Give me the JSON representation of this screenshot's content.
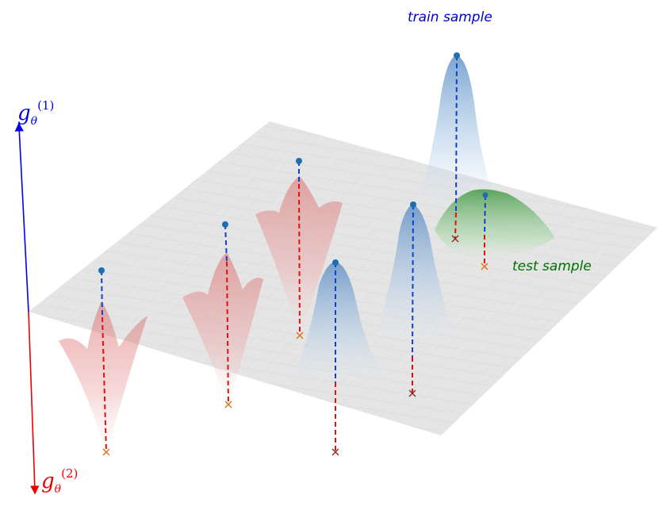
{
  "labels": {
    "train_sample": "train sample",
    "test_sample": "test sample",
    "axis_1": {
      "base": "g",
      "sub": "θ",
      "sup": "(1)"
    },
    "axis_2": {
      "base": "g",
      "sub": "θ",
      "sup": "(2)"
    }
  },
  "colors": {
    "axis_1": "#0000ee",
    "axis_2": "#ee0000",
    "train_label": "#0000cc",
    "test_label": "#007000",
    "plane": "#d8d8d8",
    "bump_blue": "#5b8fc7",
    "bump_red": "#e07878",
    "bump_green": "#3aa03a",
    "point": "#1f6fb0"
  },
  "icons": {
    "point": "filled-circle",
    "foot": "x-mark"
  }
}
